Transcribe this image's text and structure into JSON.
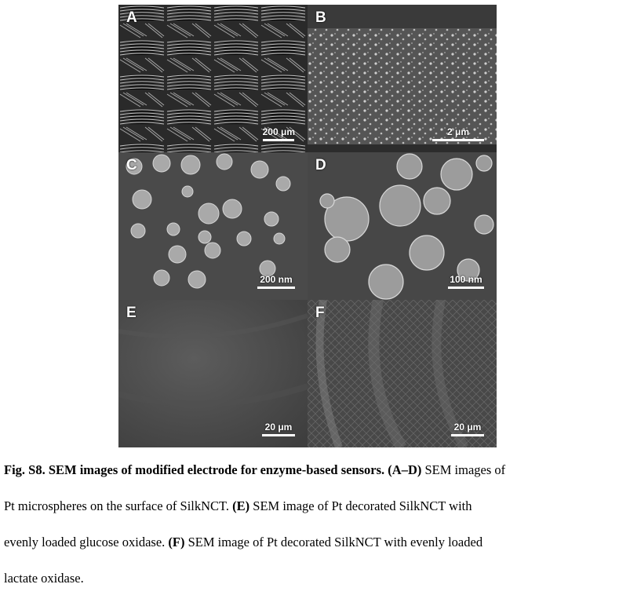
{
  "panels": [
    {
      "label": "A",
      "scale": "200 μm"
    },
    {
      "label": "B",
      "scale": "2 μm"
    },
    {
      "label": "C",
      "scale": "200 nm"
    },
    {
      "label": "D",
      "scale": "100 nm"
    },
    {
      "label": "E",
      "scale": "20 μm"
    },
    {
      "label": "F",
      "scale": "20 μm"
    }
  ],
  "caption": {
    "title": "Fig. S8. SEM images of modified electrode for enzyme-based sensors.",
    "ref_ad": "(A–D)",
    "text_ad_1": " SEM images of",
    "text_ad_2": "Pt microspheres on the surface of SilkNCT.",
    "ref_e": "(E)",
    "text_e_1": " SEM image of Pt decorated SilkNCT with",
    "text_e_2": "evenly loaded glucose oxidase.",
    "ref_f": "(F)",
    "text_f_1": " SEM image of Pt decorated SilkNCT with evenly loaded",
    "text_f_2": "lactate oxidase."
  }
}
